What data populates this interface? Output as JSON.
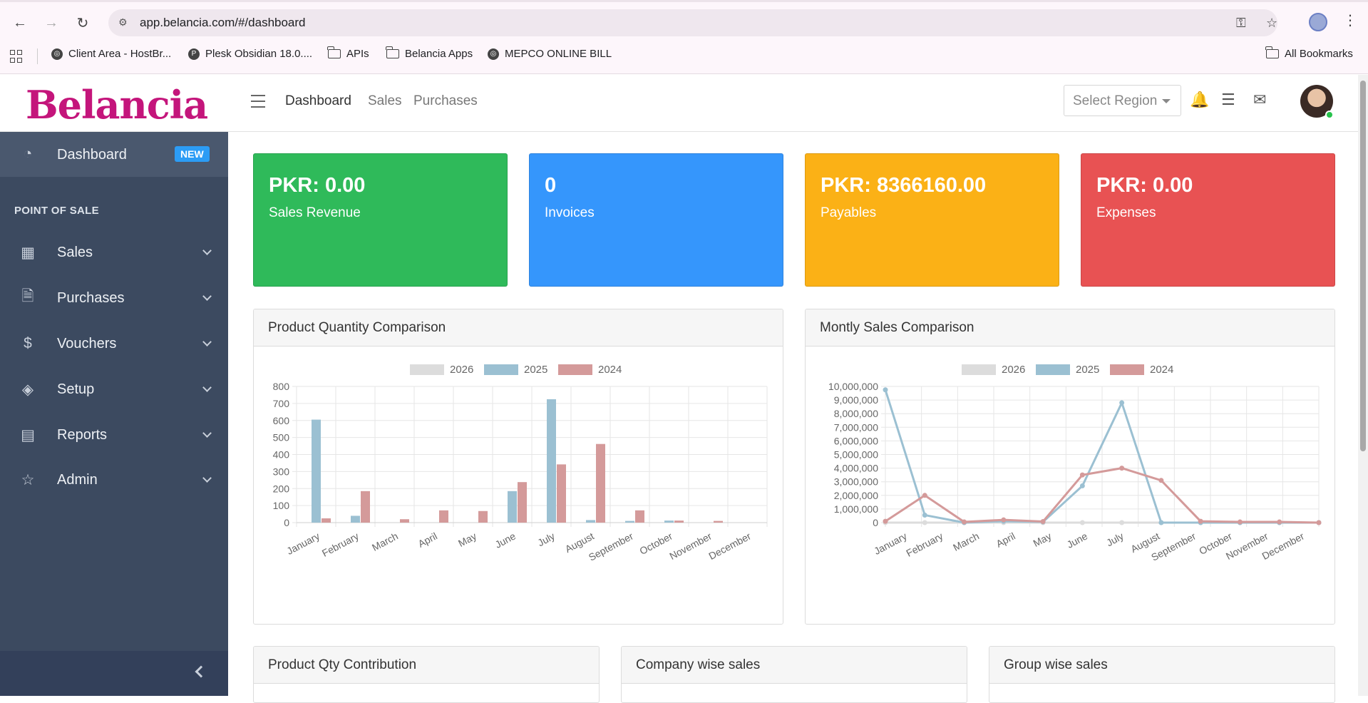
{
  "browser": {
    "url": "app.belancia.com/#/dashboard",
    "bookmarks": [
      {
        "label": "Client Area - HostBr...",
        "icon": "globe-icon"
      },
      {
        "label": "Plesk Obsidian 18.0....",
        "icon": "plesk-icon"
      },
      {
        "label": "APIs",
        "icon": "folder-icon"
      },
      {
        "label": "Belancia Apps",
        "icon": "folder-icon"
      },
      {
        "label": "MEPCO ONLINE BILL",
        "icon": "globe-icon"
      }
    ],
    "all_bookmarks": "All Bookmarks"
  },
  "header": {
    "logo": "Belancia",
    "nav": [
      "Dashboard",
      "Sales",
      "Purchases"
    ],
    "region_placeholder": "Select Region"
  },
  "sidebar": {
    "dashboard_label": "Dashboard",
    "dashboard_badge": "NEW",
    "section": "POINT OF SALE",
    "items": [
      {
        "label": "Sales",
        "icon": "calculator-icon"
      },
      {
        "label": "Purchases",
        "icon": "document-icon"
      },
      {
        "label": "Vouchers",
        "icon": "dollar-icon"
      },
      {
        "label": "Setup",
        "icon": "layers-icon"
      },
      {
        "label": "Reports",
        "icon": "report-icon"
      },
      {
        "label": "Admin",
        "icon": "star-icon"
      }
    ]
  },
  "cards": [
    {
      "value": "PKR: 0.00",
      "label": "Sales Revenue",
      "color": "#2fba5a"
    },
    {
      "value": "0",
      "label": "Invoices",
      "color": "#3596fc"
    },
    {
      "value": "PKR: 8366160.00",
      "label": "Payables",
      "color": "#fbb116"
    },
    {
      "value": "PKR: 0.00",
      "label": "Expenses",
      "color": "#e85253"
    }
  ],
  "panels": {
    "product_qty": "Product Quantity Comparison",
    "monthly_sales": "Montly Sales Comparison",
    "qty_contribution": "Product Qty Contribution",
    "company_sales": "Company wise sales",
    "group_sales": "Group wise sales"
  },
  "chart_data": [
    {
      "type": "bar",
      "categories": [
        "January",
        "February",
        "March",
        "April",
        "May",
        "June",
        "July",
        "August",
        "September",
        "October",
        "November",
        "December"
      ],
      "ylim": [
        0,
        800
      ],
      "yticks": [
        "0",
        "100",
        "200",
        "300",
        "400",
        "500",
        "600",
        "700",
        "800"
      ],
      "series": [
        {
          "name": "2026",
          "color": "#dcdcdc",
          "values": [
            0,
            0,
            0,
            0,
            0,
            0,
            0,
            0,
            0,
            0,
            0,
            0
          ]
        },
        {
          "name": "2025",
          "color": "#9bc0d2",
          "values": [
            605,
            40,
            0,
            0,
            0,
            185,
            725,
            15,
            10,
            12,
            0,
            0
          ]
        },
        {
          "name": "2024",
          "color": "#d49a9a",
          "values": [
            25,
            185,
            20,
            72,
            68,
            238,
            342,
            462,
            72,
            12,
            10,
            0
          ]
        }
      ]
    },
    {
      "type": "line",
      "categories": [
        "January",
        "February",
        "March",
        "April",
        "May",
        "June",
        "July",
        "August",
        "September",
        "October",
        "November",
        "December"
      ],
      "ylim": [
        0,
        10000000
      ],
      "yticks": [
        "0",
        "1,000,000",
        "2,000,000",
        "3,000,000",
        "4,000,000",
        "5,000,000",
        "6,000,000",
        "7,000,000",
        "8,000,000",
        "9,000,000",
        "10,000,000"
      ],
      "series": [
        {
          "name": "2026",
          "color": "#dcdcdc",
          "values": [
            0,
            0,
            0,
            0,
            0,
            0,
            0,
            0,
            0,
            0,
            0,
            0
          ]
        },
        {
          "name": "2025",
          "color": "#9bc0d2",
          "values": [
            9750000,
            550000,
            0,
            100000,
            50000,
            2700000,
            8800000,
            0,
            0,
            0,
            0,
            0
          ]
        },
        {
          "name": "2024",
          "color": "#d49a9a",
          "values": [
            100000,
            2000000,
            50000,
            200000,
            80000,
            3500000,
            4000000,
            3100000,
            100000,
            50000,
            50000,
            0
          ]
        }
      ]
    }
  ]
}
